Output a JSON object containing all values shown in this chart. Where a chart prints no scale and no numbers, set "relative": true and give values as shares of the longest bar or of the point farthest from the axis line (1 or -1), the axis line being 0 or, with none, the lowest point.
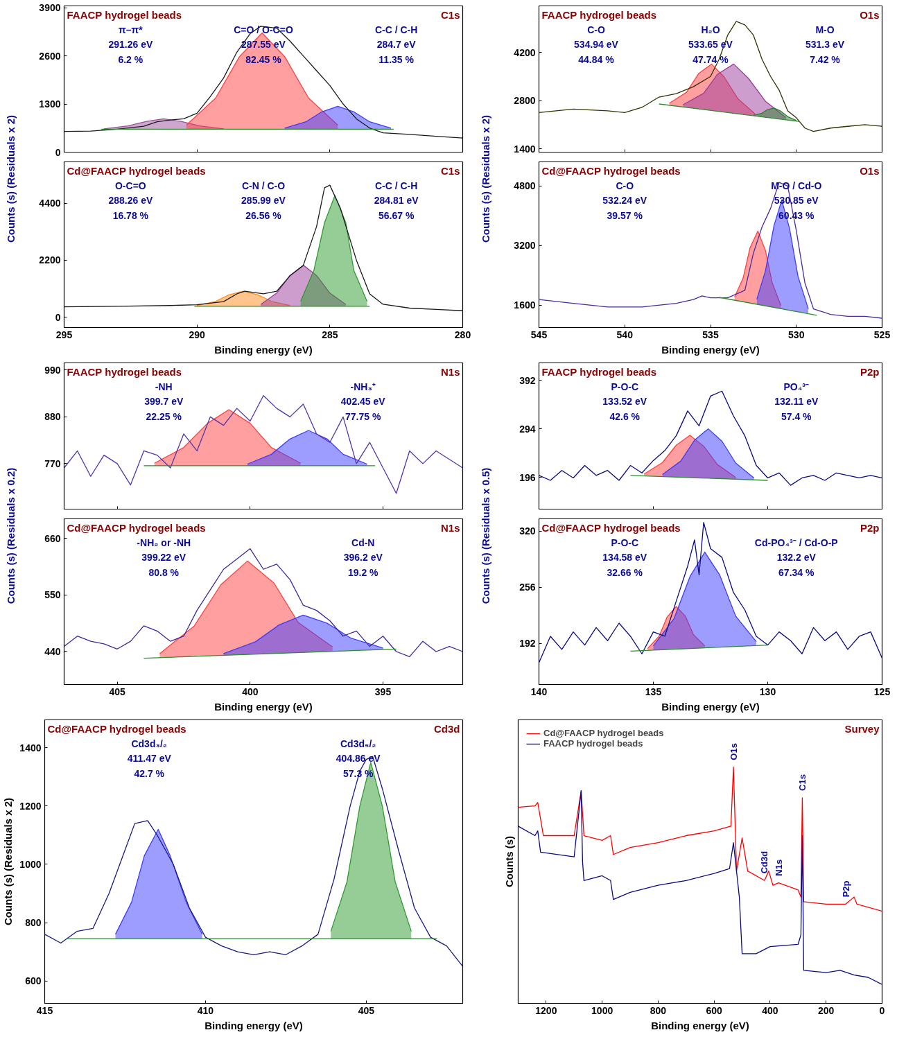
{
  "chart_data": [
    {
      "type": "line",
      "title": "FAACP hydrogel beads",
      "subtitle": "C1s",
      "ylabel": "Counts (s) (Residuals x 2)",
      "xlim": [
        295,
        280
      ],
      "xticks": [
        295,
        290,
        285,
        280
      ],
      "ylim": [
        0,
        3950
      ],
      "yticks": [
        0,
        1300,
        2600,
        3900
      ],
      "tick_labels": "y",
      "series": [
        {
          "color": "#1a1a1a",
          "x": [
            295,
            294,
            293,
            292,
            291.5,
            291,
            290.5,
            290,
            289.5,
            289,
            288.5,
            288,
            287.6,
            287,
            286.5,
            286,
            285.5,
            285,
            284.5,
            284,
            283.5,
            283,
            282,
            281,
            280
          ],
          "values": [
            560,
            570,
            620,
            700,
            820,
            870,
            900,
            1050,
            1500,
            2000,
            2700,
            3200,
            3400,
            3350,
            3000,
            2600,
            2200,
            1800,
            1300,
            900,
            650,
            520,
            480,
            430,
            380
          ]
        },
        {
          "color": "#2e8b2e",
          "x": [
            293.6,
            282.6
          ],
          "values": [
            620,
            620
          ]
        },
        {
          "type": "area",
          "color": "#9b4f9b",
          "x": [
            289.0,
            289.9,
            290.6,
            291.26,
            291.9,
            292.6,
            293.5
          ],
          "values": [
            630,
            710,
            830,
            900,
            830,
            710,
            630
          ]
        },
        {
          "type": "area",
          "color": "#ff4040",
          "x": [
            284.7,
            285.8,
            286.7,
            287.55,
            288.4,
            289.3,
            290.4
          ],
          "values": [
            730,
            1460,
            2580,
            3220,
            2580,
            1460,
            730
          ]
        },
        {
          "type": "area",
          "color": "#3c3cff",
          "x": [
            282.7,
            283.5,
            284.1,
            284.7,
            285.3,
            285.9,
            286.7
          ],
          "values": [
            650,
            820,
            1090,
            1240,
            1090,
            820,
            650
          ]
        }
      ],
      "annotations": [
        "π–π*\n291.26 eV\n6.2 %",
        "C=O / O-C=O\n287.55 eV\n82.45 %",
        "C-C / C-H\n284.7 eV\n11.35 %"
      ]
    },
    {
      "type": "line",
      "title": "Cd@FAACP hydrogel beads",
      "subtitle": "C1s",
      "xlabel": "Binding energy (eV)",
      "xlim": [
        295,
        280
      ],
      "xticks": [
        295,
        290,
        285,
        280
      ],
      "ylim": [
        -400,
        6000
      ],
      "yticks": [
        0,
        2200,
        4400
      ],
      "series": [
        {
          "color": "#1a1a1a",
          "x": [
            295,
            293,
            291,
            290,
            289,
            288.5,
            288.2,
            287.5,
            287,
            286.5,
            286,
            285.5,
            285.2,
            285,
            284.6,
            284,
            283.5,
            283,
            282,
            281,
            280
          ],
          "values": [
            400,
            420,
            450,
            480,
            600,
            900,
            1000,
            900,
            1000,
            1600,
            2000,
            3500,
            5000,
            5100,
            4200,
            2200,
            900,
            500,
            350,
            300,
            250
          ]
        },
        {
          "color": "#2e8b2e",
          "x": [
            290.1,
            283.5
          ],
          "values": [
            420,
            420
          ]
        },
        {
          "type": "area",
          "color": "#ff8c1a",
          "x": [
            286.5,
            287.2,
            287.7,
            288.26,
            288.8,
            289.3,
            290.0
          ],
          "values": [
            450,
            610,
            860,
            1000,
            860,
            610,
            450
          ]
        },
        {
          "type": "area",
          "color": "#9b3c9b",
          "x": [
            284.4,
            285.0,
            285.5,
            285.99,
            286.5,
            287.0,
            287.6
          ],
          "values": [
            490,
            930,
            1610,
            2000,
            1610,
            930,
            490
          ]
        },
        {
          "type": "area",
          "color": "#2e9b2e",
          "x": [
            283.6,
            284.1,
            284.4,
            284.81,
            285.2,
            285.6,
            286.1
          ],
          "values": [
            610,
            1810,
            3650,
            4700,
            3650,
            1810,
            610
          ]
        }
      ],
      "annotations": [
        "O-C=O\n288.26 eV\n16.78 %",
        "C-N / C-O\n285.99 eV\n26.56 %",
        "C-C / C-H\n284.81 eV\n56.67 %"
      ]
    },
    {
      "type": "line",
      "title": "FAACP hydrogel beads",
      "subtitle": "O1s",
      "ylabel": "Counts (s) (Residuals x 2)",
      "xlim": [
        545,
        525
      ],
      "xticks": [
        545,
        540,
        535,
        530,
        525
      ],
      "ylim": [
        1300,
        5550
      ],
      "yticks": [
        1400,
        2800,
        4200
      ],
      "tick_labels": "y",
      "series": [
        {
          "color": "#333300",
          "x": [
            545,
            543,
            541,
            540,
            539,
            538,
            537,
            536,
            535,
            534.5,
            534,
            533.5,
            533,
            532.5,
            532,
            531.5,
            531,
            530.5,
            530,
            529.5,
            529,
            528,
            527,
            526,
            525
          ],
          "values": [
            2450,
            2550,
            2500,
            2450,
            2600,
            2900,
            3000,
            3200,
            3500,
            4000,
            4700,
            5100,
            5000,
            4700,
            4000,
            3500,
            3100,
            2500,
            2300,
            2000,
            1900,
            2000,
            2050,
            2100,
            2050
          ]
        },
        {
          "color": "#2e8b2e",
          "x": [
            538,
            529.8
          ],
          "values": [
            2700,
            2190
          ]
        },
        {
          "type": "area",
          "color": "#ff4040",
          "x": [
            532.4,
            533.4,
            534.2,
            534.94,
            535.7,
            536.4,
            537.4
          ],
          "values": [
            2410,
            2850,
            3480,
            3860,
            3580,
            3040,
            2720
          ]
        },
        {
          "type": "area",
          "color": "#9b3c9b",
          "x": [
            530.6,
            531.8,
            532.8,
            533.65,
            534.6,
            535.4,
            536.6
          ],
          "values": [
            2300,
            2780,
            3450,
            3860,
            3560,
            3010,
            2680
          ]
        },
        {
          "type": "area",
          "color": "#2e7d2e",
          "x": [
            530.0,
            530.5,
            530.9,
            531.3,
            531.7,
            532.0,
            532.5
          ],
          "values": [
            2220,
            2330,
            2490,
            2580,
            2530,
            2430,
            2370
          ]
        }
      ],
      "annotations": [
        "C-O\n534.94 eV\n44.84 %",
        "H₂O\n533.65 eV\n47.74 %",
        "M-O\n531.3 eV\n7.42 %"
      ]
    },
    {
      "type": "line",
      "title": "Cd@FAACP hydrogel beads",
      "subtitle": "O1s",
      "xlabel": "Binding energy (eV)",
      "xlim": [
        545,
        525
      ],
      "xticks": [
        545,
        540,
        535,
        530,
        525
      ],
      "ylim": [
        1000,
        5450
      ],
      "yticks": [
        1600,
        3200,
        4800
      ],
      "series": [
        {
          "color": "#4b2a9e",
          "x": [
            545,
            543,
            541,
            539,
            537,
            536,
            535.5,
            535,
            534,
            533,
            532.5,
            532,
            531.5,
            531,
            530.5,
            530,
            529.5,
            529,
            528,
            527,
            526,
            525
          ],
          "values": [
            1750,
            1650,
            1550,
            1550,
            1650,
            1750,
            1850,
            1800,
            1800,
            2000,
            3000,
            3700,
            4200,
            4900,
            4800,
            3600,
            2200,
            1500,
            1350,
            1300,
            1300,
            1250
          ]
        },
        {
          "color": "#2e8b2e",
          "x": [
            534.5,
            528.8
          ],
          "values": [
            1810,
            1330
          ]
        },
        {
          "type": "area",
          "color": "#ff4040",
          "x": [
            530.9,
            531.4,
            531.8,
            532.24,
            532.7,
            533.1,
            533.6
          ],
          "values": [
            1590,
            2190,
            3070,
            3590,
            3140,
            2330,
            1820
          ]
        },
        {
          "type": "area",
          "color": "#3c3cff",
          "x": [
            529.3,
            529.9,
            530.4,
            530.85,
            531.3,
            531.8,
            532.3
          ],
          "values": [
            1500,
            2370,
            3670,
            4420,
            3740,
            2520,
            1760
          ]
        }
      ],
      "annotations": [
        "C-O\n532.24 eV\n39.57 %",
        "M-O / Cd-O\n530.85 eV\n60.43 %"
      ]
    },
    {
      "type": "line",
      "title": "FAACP hydrogel beads",
      "subtitle": "N1s",
      "ylabel": "Counts (s) (Residuals x 0.2)",
      "xlim": [
        407,
        392
      ],
      "xticks": [
        405,
        400,
        395
      ],
      "ylim": [
        663,
        1007
      ],
      "yticks": [
        770,
        880,
        990
      ],
      "tick_labels": "y",
      "series": [
        {
          "color": "#5533aa",
          "x": [
            407,
            406.5,
            406,
            405.5,
            405,
            404.5,
            404,
            403.5,
            403,
            402.5,
            402,
            401.5,
            401,
            400.5,
            400,
            399.5,
            399,
            398.5,
            398,
            397.5,
            397,
            396.5,
            396,
            395.5,
            395,
            394.5,
            394,
            393.5,
            393,
            392.5,
            392
          ],
          "values": [
            760,
            800,
            740,
            790,
            770,
            720,
            800,
            790,
            760,
            840,
            800,
            880,
            860,
            900,
            870,
            930,
            900,
            880,
            910,
            840,
            820,
            880,
            770,
            820,
            760,
            700,
            800,
            770,
            800,
            780,
            760
          ]
        },
        {
          "color": "#2e8b2e",
          "x": [
            404,
            395.3
          ],
          "values": [
            765,
            765
          ]
        },
        {
          "type": "area",
          "color": "#ff4040",
          "x": [
            398.1,
            399.2,
            400.0,
            400.8,
            401.6,
            402.5,
            403.6
          ],
          "values": [
            771,
            808,
            865,
            897,
            865,
            808,
            771
          ]
        },
        {
          "type": "area",
          "color": "#3c3cff",
          "x": [
            395.6,
            396.5,
            397.1,
            397.8,
            398.5,
            399.2,
            400.1
          ],
          "values": [
            769,
            792,
            828,
            848,
            828,
            792,
            769
          ]
        }
      ],
      "annotations": [
        "-NH\n399.7 eV\n22.25 %",
        "-NH₃⁺\n402.45 eV\n77.75 %"
      ]
    },
    {
      "type": "line",
      "title": "Cd@FAACP hydrogel beads",
      "subtitle": "N1s",
      "xlabel": "Binding energy (eV)",
      "xlim": [
        407,
        392
      ],
      "xticks": [
        405,
        400,
        395
      ],
      "ylim": [
        376,
        698
      ],
      "yticks": [
        440,
        550,
        660
      ],
      "series": [
        {
          "color": "#3a2a9e",
          "x": [
            407,
            406.5,
            406,
            405.5,
            405,
            404.5,
            404,
            403.5,
            403,
            402.5,
            402,
            401.5,
            401,
            400.5,
            400,
            399.5,
            399,
            398.5,
            398,
            397.5,
            397,
            396.5,
            396,
            395.5,
            395,
            394.5,
            394,
            393.5,
            393,
            392.5,
            392
          ],
          "values": [
            450,
            470,
            460,
            455,
            445,
            460,
            490,
            480,
            460,
            470,
            520,
            560,
            600,
            620,
            640,
            600,
            610,
            580,
            530,
            520,
            500,
            470,
            480,
            450,
            470,
            440,
            430,
            460,
            440,
            450,
            440
          ]
        },
        {
          "color": "#2e8b2e",
          "x": [
            404,
            394.5
          ],
          "values": [
            427,
            445
          ]
        },
        {
          "type": "area",
          "color": "#ff4040",
          "x": [
            396.9,
            398.2,
            399.1,
            400.1,
            401.1,
            402.1,
            403.4
          ],
          "values": [
            449,
            497,
            573,
            616,
            570,
            490,
            436
          ]
        },
        {
          "type": "area",
          "color": "#3c3cff",
          "x": [
            395,
            396.2,
            397.1,
            398,
            398.9,
            399.8,
            401
          ],
          "values": [
            447,
            466,
            495,
            511,
            492,
            459,
            436
          ]
        }
      ],
      "annotations": [
        "-NH₂ or -NH\n399.22 eV\n80.8 %",
        "Cd-N\n396.2 eV\n19.2 %"
      ]
    },
    {
      "type": "line",
      "title": "FAACP hydrogel beads",
      "subtitle": "P2p",
      "ylabel": "Counts (s) (Residuals x 0.5)",
      "xlim": [
        140,
        125
      ],
      "xticks": [
        140,
        135,
        130,
        125
      ],
      "ylim": [
        132,
        427
      ],
      "yticks": [
        196,
        294,
        392
      ],
      "tick_labels": "y",
      "series": [
        {
          "color": "#0a0a80",
          "x": [
            140,
            139.5,
            139,
            138.5,
            138,
            137.5,
            137,
            136.5,
            136,
            135.5,
            135,
            134.5,
            134,
            133.5,
            133,
            132.5,
            132,
            131.5,
            131,
            130.5,
            130,
            129.5,
            129,
            128.5,
            128,
            127.5,
            127,
            126.5,
            126,
            125.5,
            125
          ],
          "values": [
            200,
            190,
            210,
            195,
            220,
            200,
            210,
            190,
            220,
            205,
            230,
            250,
            280,
            330,
            300,
            360,
            370,
            320,
            280,
            220,
            195,
            205,
            180,
            195,
            200,
            190,
            205,
            200,
            195,
            200,
            195
          ]
        },
        {
          "color": "#2e8b2e",
          "x": [
            136,
            130
          ],
          "values": [
            200,
            190
          ]
        },
        {
          "type": "area",
          "color": "#ff4040",
          "x": [
            131.4,
            132.2,
            132.8,
            133.4,
            134.0,
            134.6,
            135.4
          ],
          "values": [
            196,
            222,
            259,
            281,
            261,
            226,
            203
          ]
        },
        {
          "type": "area",
          "color": "#3c3cff",
          "x": [
            130.6,
            131.4,
            132.0,
            132.6,
            133.2,
            133.8,
            134.6
          ],
          "values": [
            195,
            225,
            269,
            294,
            271,
            229,
            202
          ]
        }
      ],
      "annotations": [
        "P-O-C\n133.52 eV\n42.6 %",
        "PO₄³⁻\n132.11 eV\n57.4 %"
      ]
    },
    {
      "type": "line",
      "title": "Cd@FAACP hydrogel beads",
      "subtitle": "P2p",
      "xlabel": "Binding energy (eV)",
      "xlim": [
        140,
        125
      ],
      "xticks": [
        140,
        135,
        130,
        125
      ],
      "ylim": [
        145,
        334
      ],
      "yticks": [
        192,
        256,
        320
      ],
      "series": [
        {
          "color": "#0a0a80",
          "x": [
            140,
            139.5,
            139,
            138.5,
            138,
            137.5,
            137,
            136.5,
            136,
            135.5,
            135,
            134.5,
            134,
            133.5,
            133.2,
            133,
            132.8,
            132.5,
            132,
            131.5,
            131,
            130.5,
            130,
            129.5,
            129,
            128.5,
            128,
            127.5,
            127,
            126.5,
            126,
            125.5,
            125
          ],
          "values": [
            170,
            200,
            185,
            205,
            190,
            210,
            195,
            215,
            200,
            180,
            205,
            200,
            240,
            280,
            310,
            270,
            330,
            300,
            290,
            250,
            230,
            200,
            190,
            205,
            195,
            180,
            210,
            195,
            205,
            185,
            200,
            205,
            175
          ]
        },
        {
          "color": "#2e8b2e",
          "x": [
            136,
            130
          ],
          "values": [
            183,
            190
          ]
        },
        {
          "type": "area",
          "color": "#ff4040",
          "x": [
            132.75,
            133.25,
            133.6,
            134,
            134.4,
            134.75,
            135.25
          ],
          "values": [
            189,
            202,
            223,
            234,
            222,
            200,
            186
          ]
        },
        {
          "type": "area",
          "color": "#3c3cff",
          "x": [
            130.5,
            131.4,
            132.1,
            132.75,
            133.4,
            134.1,
            135
          ],
          "values": [
            194,
            223,
            270,
            296,
            268,
            220,
            189
          ]
        }
      ],
      "annotations": [
        "P-O-C\n134.58 eV\n32.66 %",
        "Cd-PO₄³⁻ / Cd-O-P\n132.2 eV\n67.34 %"
      ]
    },
    {
      "type": "line",
      "title": "Cd@FAACP hydrogel beads",
      "subtitle": "Cd3d",
      "xlabel": "Binding energy (eV)",
      "ylabel": "Counts (s) (Residuals x 2)",
      "xlim": [
        415,
        402
      ],
      "xticks": [
        415,
        410,
        405
      ],
      "ylim": [
        523,
        1496
      ],
      "yticks": [
        600,
        800,
        1000,
        1200,
        1400
      ],
      "series": [
        {
          "color": "#1a1a80",
          "x": [
            415,
            414.5,
            414,
            413.5,
            413,
            412.5,
            412.2,
            411.8,
            411.5,
            411,
            410.5,
            410,
            409.5,
            409,
            408.5,
            408,
            407.5,
            407,
            406.5,
            406,
            405.5,
            405.2,
            405,
            404.8,
            404.5,
            404,
            403.5,
            403,
            402.5,
            402
          ],
          "values": [
            760,
            730,
            770,
            780,
            900,
            1050,
            1140,
            1150,
            1100,
            1000,
            850,
            750,
            720,
            700,
            690,
            700,
            690,
            720,
            760,
            950,
            1200,
            1320,
            1360,
            1370,
            1260,
            1050,
            850,
            750,
            720,
            650
          ]
        },
        {
          "color": "#2e8b2e",
          "x": [
            414.3,
            402.8
          ],
          "values": [
            745,
            745
          ]
        },
        {
          "type": "area",
          "color": "#3c3cff",
          "x": [
            410.1,
            410.6,
            411.1,
            411.47,
            411.9,
            412.3,
            412.8
          ],
          "values": [
            760,
            870,
            1030,
            1120,
            1030,
            870,
            760
          ]
        },
        {
          "type": "area",
          "color": "#2e9b2e",
          "x": [
            403.6,
            404.1,
            404.5,
            404.86,
            405.2,
            405.6,
            406.1
          ],
          "values": [
            770,
            940,
            1200,
            1350,
            1200,
            940,
            770
          ]
        }
      ],
      "annotations": [
        "Cd3d₃/₂\n411.47 eV\n42.7 %",
        "Cd3d₅/₂\n404.86 eV\n57.3 %"
      ]
    },
    {
      "type": "line",
      "subtitle": "Survey",
      "xlabel": "Binding energy (eV)",
      "ylabel": "Counts (s)",
      "relative": true,
      "xlim": [
        1300,
        0
      ],
      "xticks": [
        1200,
        1000,
        800,
        600,
        400,
        200,
        0
      ],
      "tick_labels": "x",
      "legend": "top left",
      "series": [
        {
          "name": "Cd@FAACP hydrogel beads",
          "color": "#ff0000",
          "x": [
            1300,
            1240,
            1230,
            1210,
            1100,
            1075,
            1065,
            1000,
            970,
            960,
            900,
            800,
            700,
            600,
            540,
            531,
            520,
            500,
            480,
            420,
            405,
            390,
            370,
            300,
            290,
            285,
            280,
            200,
            130,
            100,
            90,
            0
          ],
          "values": [
            0.83,
            0.836,
            0.85,
            0.71,
            0.71,
            0.9,
            0.71,
            0.69,
            0.71,
            0.63,
            0.66,
            0.68,
            0.71,
            0.73,
            0.75,
            1.0,
            0.56,
            0.7,
            0.56,
            0.52,
            0.56,
            0.5,
            0.51,
            0.48,
            0.45,
            0.87,
            0.43,
            0.42,
            0.42,
            0.45,
            0.42,
            0.39
          ]
        },
        {
          "name": "FAACP hydrogel beads",
          "color": "#0a0a80",
          "x": [
            1300,
            1240,
            1230,
            1220,
            1100,
            1075,
            1070,
            1065,
            1000,
            970,
            960,
            900,
            800,
            700,
            600,
            545,
            531,
            510,
            500,
            450,
            400,
            300,
            290,
            285,
            280,
            200,
            150,
            100,
            50,
            0
          ],
          "values": [
            0.75,
            0.71,
            0.73,
            0.64,
            0.62,
            0.9,
            0.6,
            0.52,
            0.54,
            0.52,
            0.44,
            0.47,
            0.5,
            0.52,
            0.55,
            0.57,
            0.68,
            0.45,
            0.21,
            0.21,
            0.24,
            0.25,
            0.29,
            0.71,
            0.14,
            0.13,
            0.14,
            0.12,
            0.11,
            0.08
          ]
        }
      ],
      "annotations": [
        {
          "text": "O1s",
          "x": 531,
          "y": 1.0
        },
        {
          "text": "Cd3d",
          "x": 420,
          "y": 0.52
        },
        {
          "text": "N1s",
          "x": 370,
          "y": 0.51
        },
        {
          "text": "C1s",
          "x": 285,
          "y": 0.87
        },
        {
          "text": "P2p",
          "x": 130,
          "y": 0.42
        }
      ]
    }
  ]
}
